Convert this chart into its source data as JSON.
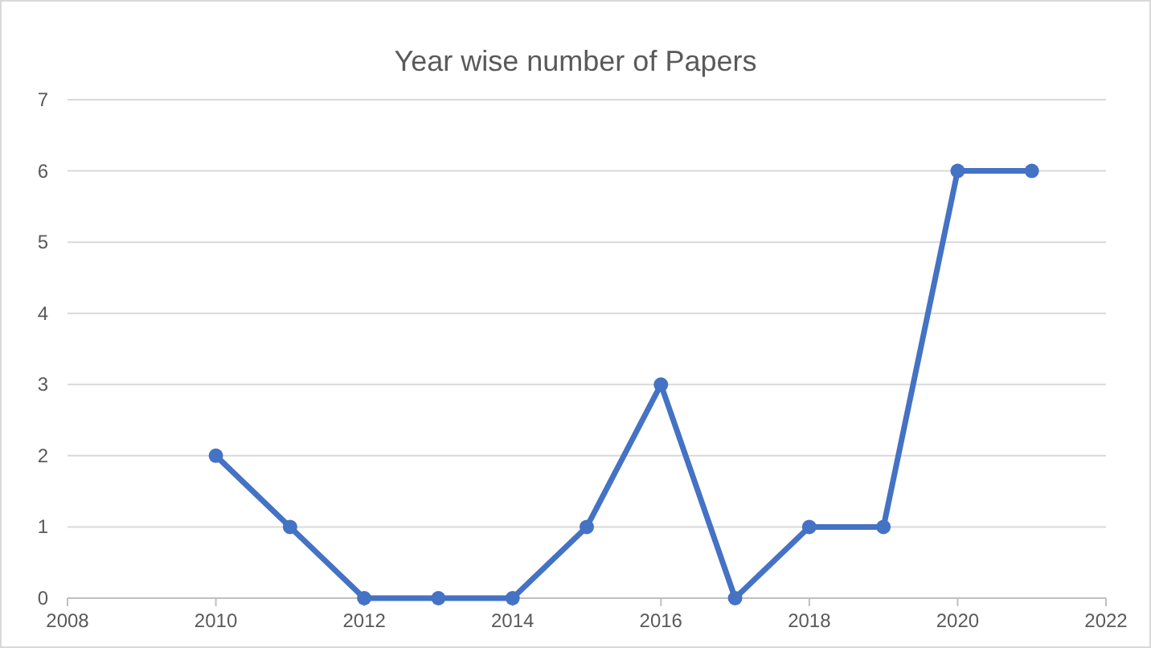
{
  "chart_data": {
    "type": "line",
    "title": "Year wise number of Papers",
    "x": [
      2010,
      2011,
      2012,
      2013,
      2014,
      2015,
      2016,
      2017,
      2018,
      2019,
      2020,
      2021
    ],
    "series": [
      {
        "color": "#4472c4",
        "values": [
          2,
          1,
          0,
          0,
          0,
          1,
          3,
          0,
          1,
          1,
          6,
          6
        ]
      }
    ],
    "xlim": [
      2008,
      2022
    ],
    "xticks": [
      2008,
      2010,
      2012,
      2014,
      2016,
      2018,
      2020,
      2022
    ],
    "ylim": [
      0,
      7
    ],
    "yticks": [
      0,
      1,
      2,
      3,
      4,
      5,
      6,
      7
    ],
    "grid": "y",
    "marker": "circle",
    "line_style": "solid"
  }
}
